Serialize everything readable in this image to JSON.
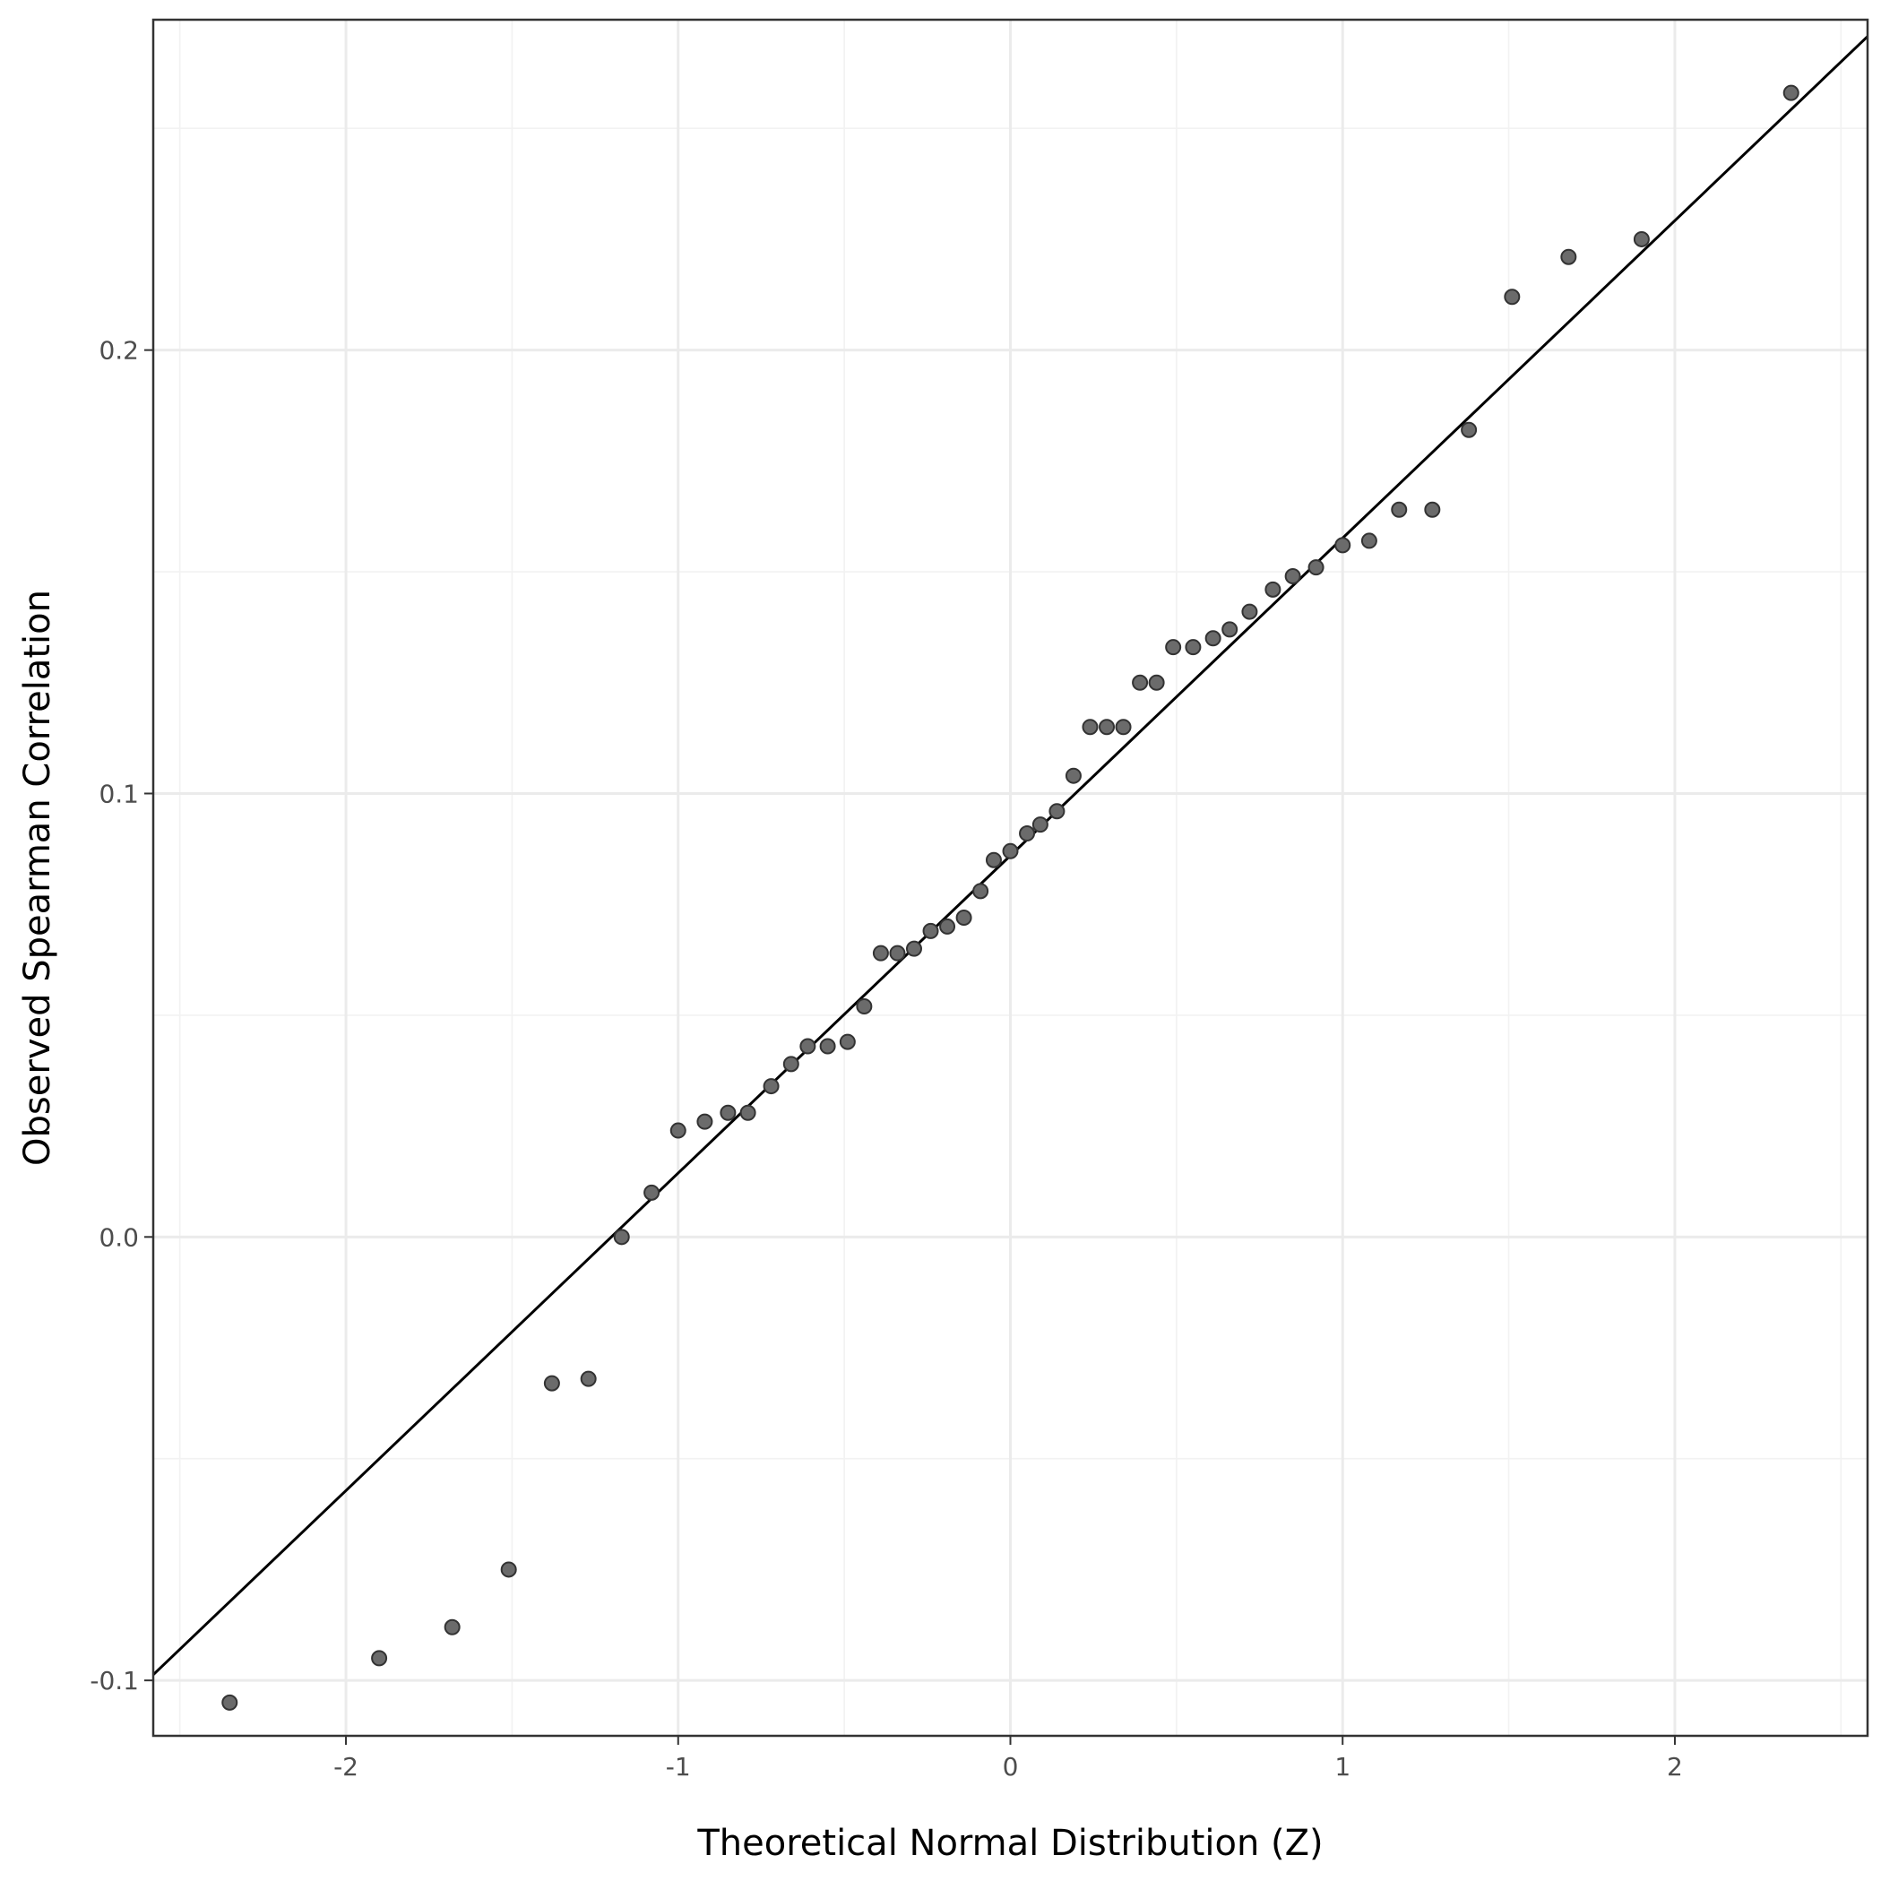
{
  "chart_data": {
    "type": "scatter",
    "title": "",
    "xlabel": "Theoretical Normal Distribution (Z)",
    "ylabel": "Observed Spearman Correlation",
    "xlim": [
      -2.58,
      2.58
    ],
    "ylim": [
      -0.1125,
      0.2745
    ],
    "x_ticks": [
      -2,
      -1,
      0,
      1,
      2
    ],
    "y_ticks": [
      -0.1,
      0.0,
      0.1,
      0.2
    ],
    "x_tick_labels": [
      "-2",
      "-1",
      "0",
      "1",
      "2"
    ],
    "y_tick_labels": [
      "-0.1",
      "0.0",
      "0.1",
      "0.2"
    ],
    "grid": true,
    "point_color": "#6b6b6b",
    "line_color": "#000000",
    "reference_line": {
      "intercept": 0.086,
      "slope": 0.0716
    },
    "series": [
      {
        "x": [
          -2.35,
          -1.9,
          -1.68,
          -1.51,
          -1.38,
          -1.27,
          -1.17,
          -1.08,
          -1.0,
          -0.92,
          -0.85,
          -0.79,
          -0.72,
          -0.66,
          -0.61,
          -0.55,
          -0.49,
          -0.44,
          -0.39,
          -0.34,
          -0.29,
          -0.24,
          -0.19,
          -0.14,
          -0.09,
          -0.05,
          0.0,
          0.05,
          0.09,
          0.14,
          0.19,
          0.24,
          0.29,
          0.34,
          0.39,
          0.44,
          0.49,
          0.55,
          0.61,
          0.66,
          0.72,
          0.79,
          0.85,
          0.92,
          1.0,
          1.08,
          1.17,
          1.27,
          1.38,
          1.51,
          1.68,
          1.9,
          2.35
        ],
        "y": [
          -0.105,
          -0.095,
          -0.088,
          -0.075,
          -0.033,
          -0.032,
          0.0,
          0.01,
          0.024,
          0.026,
          0.028,
          0.028,
          0.034,
          0.039,
          0.043,
          0.043,
          0.044,
          0.052,
          0.064,
          0.064,
          0.065,
          0.069,
          0.07,
          0.072,
          0.078,
          0.085,
          0.087,
          0.091,
          0.093,
          0.096,
          0.104,
          0.115,
          0.115,
          0.115,
          0.125,
          0.125,
          0.133,
          0.133,
          0.135,
          0.137,
          0.141,
          0.146,
          0.149,
          0.151,
          0.156,
          0.157,
          0.164,
          0.164,
          0.182,
          0.212,
          0.221,
          0.225,
          0.258
        ]
      }
    ]
  }
}
